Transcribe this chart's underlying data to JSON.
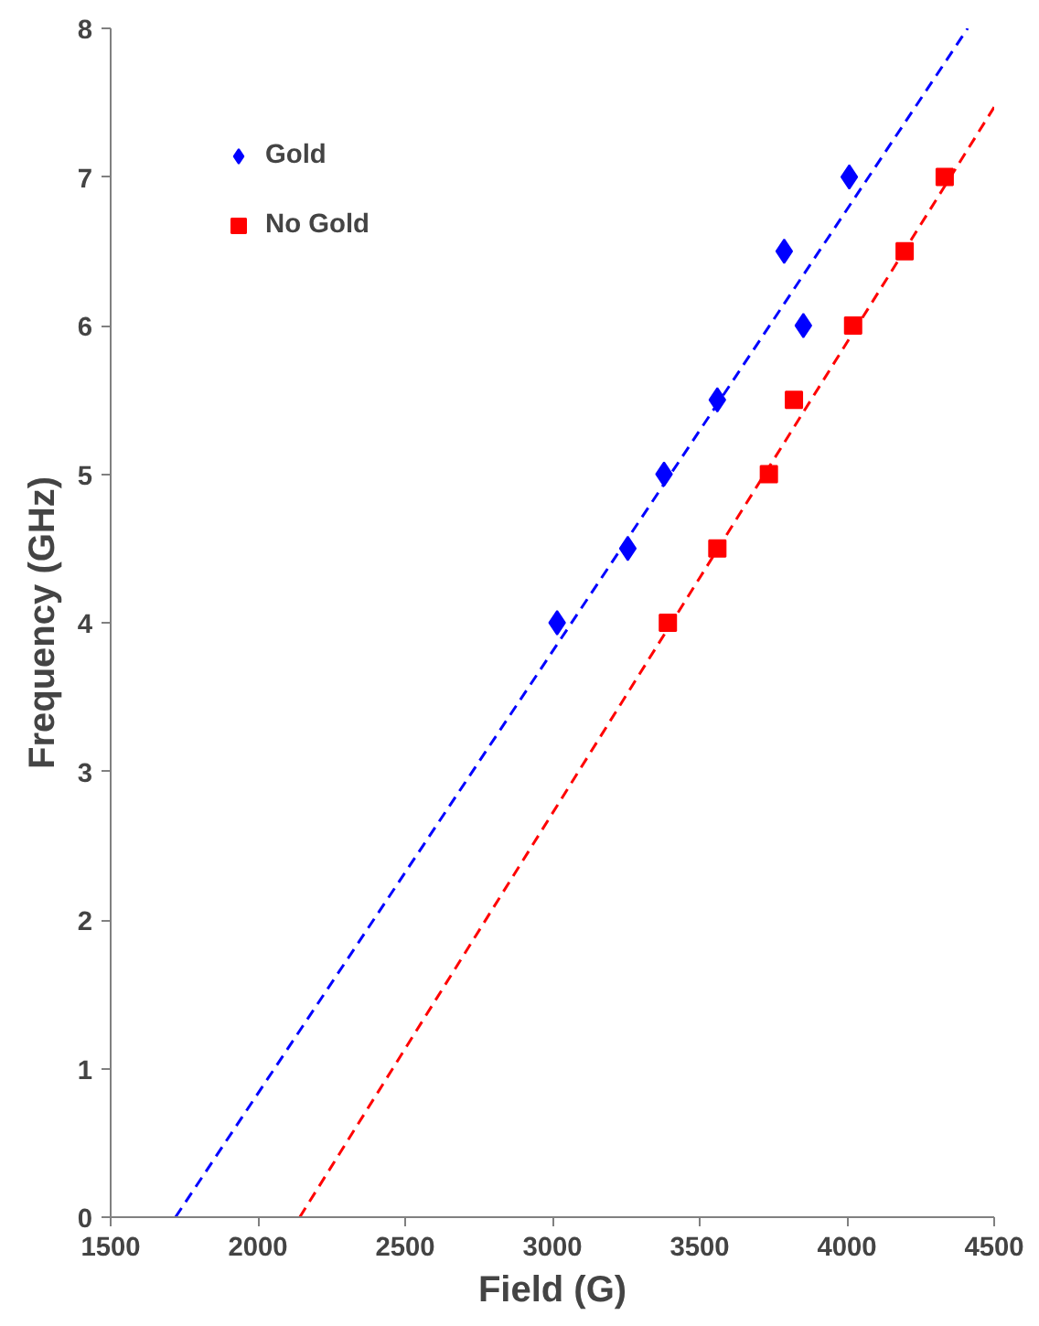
{
  "chart_data": {
    "type": "scatter",
    "xlabel": "Field (G)",
    "ylabel": "Frequency (GHz)",
    "xlim": [
      1500,
      4500
    ],
    "ylim": [
      0,
      8
    ],
    "xticks": [
      1500,
      2000,
      2500,
      3000,
      3500,
      4000,
      4500
    ],
    "yticks": [
      0,
      1,
      2,
      3,
      4,
      5,
      6,
      7,
      8
    ],
    "grid": false,
    "legend": "top left",
    "series": [
      {
        "name": "Gold",
        "color": "#0000ff",
        "marker": "diamond",
        "x": [
          3016,
          3256,
          3379,
          3560,
          3787,
          3852,
          4008
        ],
        "values": [
          4.0,
          4.5,
          5.0,
          5.5,
          6.5,
          6.0,
          7.0
        ]
      },
      {
        "name": "No Gold",
        "color": "#ff0000",
        "marker": "square",
        "x": [
          3392,
          3560,
          3735,
          3820,
          4021,
          4196,
          4332
        ],
        "values": [
          4.0,
          4.5,
          5.0,
          5.5,
          6.0,
          6.5,
          7.0
        ]
      },
      {
        "type": "line",
        "line_style": "dashed",
        "marker": "none",
        "color": "#0000ff",
        "x": [
          1720,
          4410
        ],
        "values": [
          0,
          8
        ]
      },
      {
        "type": "line",
        "line_style": "dashed",
        "marker": "none",
        "color": "#ff0000",
        "x": [
          2142,
          4500
        ],
        "values": [
          0,
          7.47
        ]
      }
    ]
  }
}
